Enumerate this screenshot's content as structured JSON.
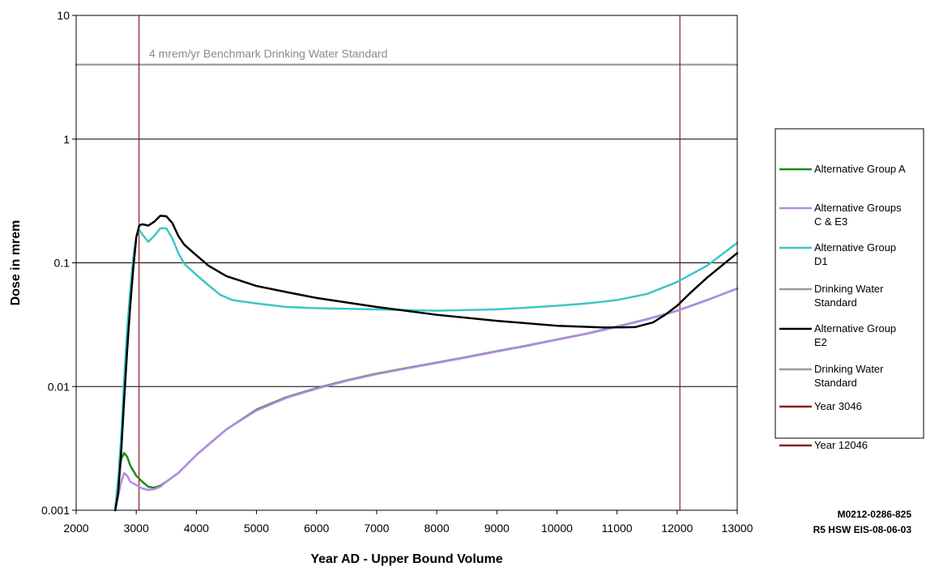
{
  "chart_data": {
    "type": "line",
    "title": "",
    "xlabel": "Year AD - Upper Bound Volume",
    "ylabel": "Dose in mrem",
    "xlim": [
      2000,
      13000
    ],
    "ylim": [
      0.001,
      10
    ],
    "yscale": "log",
    "grid": "horizontal",
    "legend_position": "right",
    "x_ticks": [
      "2000",
      "3000",
      "4000",
      "5000",
      "6000",
      "7000",
      "8000",
      "9000",
      "10000",
      "11000",
      "12000",
      "13000"
    ],
    "y_ticks": [
      {
        "value": 0.001,
        "label": "0.001"
      },
      {
        "value": 0.01,
        "label": "0.01"
      },
      {
        "value": 0.1,
        "label": "0.1"
      },
      {
        "value": 1,
        "label": "1"
      },
      {
        "value": 10,
        "label": "10"
      }
    ],
    "annotation": "4 mrem/yr Benchmark Drinking Water Standard",
    "figure_id": [
      "M0212-0286-825",
      "R5 HSW EIS-08-06-03"
    ],
    "series": [
      {
        "name": "Alternative Group A",
        "color": "#1a8a1a",
        "points": [
          [
            2650,
            0.001
          ],
          [
            2700,
            0.0018
          ],
          [
            2750,
            0.0026
          ],
          [
            2800,
            0.0029
          ],
          [
            2850,
            0.0027
          ],
          [
            2900,
            0.0023
          ],
          [
            3000,
            0.0019
          ],
          [
            3100,
            0.0017
          ],
          [
            3200,
            0.00155
          ],
          [
            3300,
            0.00152
          ],
          [
            3400,
            0.00158
          ],
          [
            3500,
            0.0017
          ],
          [
            3700,
            0.002
          ],
          [
            4000,
            0.0028
          ],
          [
            4500,
            0.0045
          ],
          [
            5000,
            0.0065
          ],
          [
            5500,
            0.0082
          ],
          [
            6000,
            0.0097
          ],
          [
            6500,
            0.0112
          ],
          [
            7000,
            0.0127
          ],
          [
            7500,
            0.0141
          ],
          [
            8000,
            0.0156
          ],
          [
            8500,
            0.0173
          ],
          [
            9000,
            0.0193
          ],
          [
            9500,
            0.0214
          ],
          [
            10000,
            0.024
          ],
          [
            10500,
            0.0268
          ],
          [
            11000,
            0.0305
          ],
          [
            11500,
            0.035
          ],
          [
            12000,
            0.041
          ],
          [
            12500,
            0.05
          ],
          [
            13000,
            0.062
          ]
        ]
      },
      {
        "name": "Alternative Groups C & E3",
        "color": "#b48ae8",
        "points": [
          [
            2650,
            0.001
          ],
          [
            2700,
            0.0013
          ],
          [
            2750,
            0.0017
          ],
          [
            2800,
            0.002
          ],
          [
            2850,
            0.0019
          ],
          [
            2900,
            0.0017
          ],
          [
            3000,
            0.0016
          ],
          [
            3100,
            0.0015
          ],
          [
            3200,
            0.00146
          ],
          [
            3300,
            0.00148
          ],
          [
            3400,
            0.00155
          ],
          [
            3500,
            0.0017
          ],
          [
            3700,
            0.002
          ],
          [
            4000,
            0.0028
          ],
          [
            4500,
            0.0045
          ],
          [
            5000,
            0.0064
          ],
          [
            5500,
            0.0081
          ],
          [
            6000,
            0.0096
          ],
          [
            6500,
            0.0111
          ],
          [
            7000,
            0.0126
          ],
          [
            7500,
            0.014
          ],
          [
            8000,
            0.0155
          ],
          [
            8500,
            0.0172
          ],
          [
            9000,
            0.0192
          ],
          [
            9500,
            0.0213
          ],
          [
            10000,
            0.0239
          ],
          [
            10500,
            0.0267
          ],
          [
            11000,
            0.0304
          ],
          [
            11500,
            0.0349
          ],
          [
            12000,
            0.0409
          ],
          [
            12500,
            0.0499
          ],
          [
            13000,
            0.0619
          ]
        ]
      },
      {
        "name": "Alternative Group D1",
        "color": "#3cc6c6",
        "points": [
          [
            2650,
            0.001
          ],
          [
            2700,
            0.0018
          ],
          [
            2750,
            0.004
          ],
          [
            2800,
            0.012
          ],
          [
            2850,
            0.03
          ],
          [
            2900,
            0.06
          ],
          [
            2950,
            0.11
          ],
          [
            3000,
            0.16
          ],
          [
            3050,
            0.185
          ],
          [
            3100,
            0.17
          ],
          [
            3200,
            0.148
          ],
          [
            3300,
            0.165
          ],
          [
            3400,
            0.19
          ],
          [
            3500,
            0.19
          ],
          [
            3600,
            0.158
          ],
          [
            3700,
            0.12
          ],
          [
            3800,
            0.098
          ],
          [
            4000,
            0.08
          ],
          [
            4200,
            0.066
          ],
          [
            4400,
            0.055
          ],
          [
            4600,
            0.05
          ],
          [
            5000,
            0.047
          ],
          [
            5500,
            0.044
          ],
          [
            6000,
            0.043
          ],
          [
            7000,
            0.042
          ],
          [
            8000,
            0.041
          ],
          [
            9000,
            0.042
          ],
          [
            10000,
            0.045
          ],
          [
            10500,
            0.047
          ],
          [
            11000,
            0.05
          ],
          [
            11500,
            0.056
          ],
          [
            12000,
            0.07
          ],
          [
            12500,
            0.095
          ],
          [
            13000,
            0.145
          ]
        ]
      },
      {
        "name": "Drinking Water Standard",
        "color": "#999999",
        "points": [
          [
            2000,
            4
          ],
          [
            13000,
            4
          ]
        ]
      },
      {
        "name": "Alternative Group E2",
        "color": "#000000",
        "points": [
          [
            2650,
            0.001
          ],
          [
            2700,
            0.0014
          ],
          [
            2750,
            0.003
          ],
          [
            2800,
            0.008
          ],
          [
            2850,
            0.02
          ],
          [
            2900,
            0.045
          ],
          [
            2950,
            0.09
          ],
          [
            3000,
            0.16
          ],
          [
            3050,
            0.2
          ],
          [
            3100,
            0.205
          ],
          [
            3200,
            0.2
          ],
          [
            3300,
            0.215
          ],
          [
            3400,
            0.24
          ],
          [
            3500,
            0.238
          ],
          [
            3600,
            0.21
          ],
          [
            3700,
            0.165
          ],
          [
            3800,
            0.14
          ],
          [
            4000,
            0.115
          ],
          [
            4200,
            0.095
          ],
          [
            4500,
            0.078
          ],
          [
            5000,
            0.065
          ],
          [
            5500,
            0.058
          ],
          [
            6000,
            0.052
          ],
          [
            7000,
            0.044
          ],
          [
            8000,
            0.038
          ],
          [
            9000,
            0.034
          ],
          [
            10000,
            0.031
          ],
          [
            10800,
            0.03
          ],
          [
            11300,
            0.0302
          ],
          [
            11600,
            0.033
          ],
          [
            11800,
            0.038
          ],
          [
            12000,
            0.045
          ],
          [
            12200,
            0.056
          ],
          [
            12500,
            0.076
          ],
          [
            12800,
            0.1
          ],
          [
            13000,
            0.12
          ]
        ]
      },
      {
        "name": "Drinking Water Standard",
        "color": "#999999",
        "points": [
          [
            2000,
            4
          ],
          [
            13000,
            4
          ]
        ]
      },
      {
        "name": "Year 3046",
        "color": "#8b1a1a",
        "points": [
          [
            3046,
            0.001
          ],
          [
            3046,
            10
          ]
        ]
      },
      {
        "name": "Year 12046",
        "color": "#8b1a1a",
        "points": [
          [
            12046,
            0.001
          ],
          [
            12046,
            10
          ]
        ]
      }
    ],
    "legend_entries": [
      {
        "lines": [
          "Alternative Group A"
        ],
        "color": "#1a8a1a"
      },
      {
        "lines": [
          "Alternative Groups",
          "C & E3"
        ],
        "color": "#b48ae8"
      },
      {
        "lines": [
          "Alternative Group",
          "D1"
        ],
        "color": "#3cc6c6"
      },
      {
        "lines": [
          "Drinking Water",
          "Standard"
        ],
        "color": "#999999"
      },
      {
        "lines": [
          "Alternative Group",
          "E2"
        ],
        "color": "#000000"
      },
      {
        "lines": [
          "Drinking Water",
          "Standard"
        ],
        "color": "#999999"
      },
      {
        "lines": [
          "Year 3046"
        ],
        "color": "#8b1a1a"
      },
      {
        "lines": [
          "Year 12046"
        ],
        "color": "#8b1a1a"
      }
    ]
  }
}
